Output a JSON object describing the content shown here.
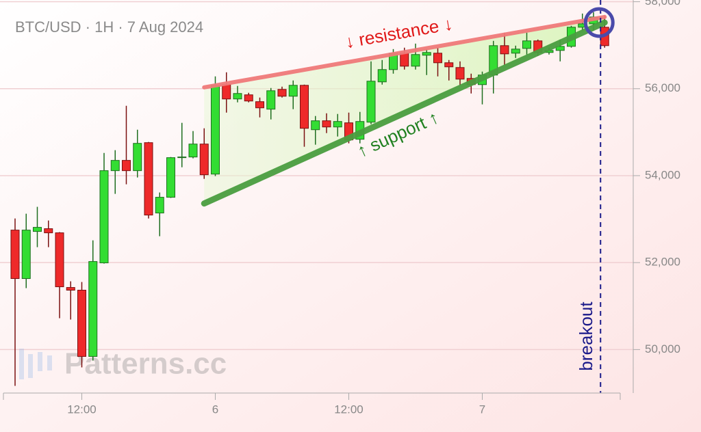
{
  "chart_data": {
    "type": "candlestick",
    "title": "BTC/USD · 1H · 7 Aug 2024",
    "categories": [
      null,
      null,
      null,
      null,
      null,
      null,
      "12:00",
      null,
      null,
      null,
      null,
      null,
      null,
      null,
      null,
      null,
      null,
      null,
      "6",
      null,
      null,
      null,
      null,
      null,
      null,
      null,
      null,
      null,
      null,
      null,
      "12:00",
      null,
      null,
      null,
      null,
      null,
      null,
      null,
      null,
      null,
      null,
      null,
      "7",
      null,
      null,
      null,
      null,
      null,
      null,
      null,
      null,
      null,
      null,
      null
    ],
    "open": [
      52748,
      51633,
      52717,
      52780,
      52685,
      51428,
      51366,
      49842,
      51994,
      54115,
      54351,
      54115,
      54759,
      53141,
      53503,
      54414,
      54429,
      54727,
      54036,
      56094,
      55764,
      55859,
      55702,
      55529,
      55984,
      55827,
      56078,
      55057,
      55262,
      55120,
      55215,
      54837,
      55230,
      56157,
      56440,
      56817,
      56518,
      56770,
      56817,
      56597,
      56487,
      56236,
      56094,
      56314,
      56990,
      56817,
      56927,
      57100,
      56833,
      56880,
      56974,
      57414,
      57492,
      57414
    ],
    "high": [
      53015,
      53125,
      53283,
      52968,
      52701,
      51570,
      51554,
      52512,
      54523,
      54586,
      55607,
      55057,
      54775,
      53613,
      54429,
      55215,
      55026,
      55089,
      56283,
      56377,
      56063,
      55906,
      55796,
      56016,
      56047,
      56189,
      56094,
      55372,
      55434,
      55419,
      55450,
      55466,
      56628,
      56660,
      56911,
      56943,
      57037,
      56911,
      56943,
      56660,
      56628,
      56346,
      56393,
      57100,
      57288,
      56990,
      57288,
      57131,
      56943,
      57131,
      57445,
      57728,
      57759,
      57680
    ],
    "low": [
      49166,
      51413,
      52355,
      52355,
      50721,
      50690,
      49590,
      49747,
      51978,
      53581,
      53801,
      53958,
      53015,
      52607,
      53487,
      54193,
      54398,
      53926,
      53989,
      55450,
      55686,
      55686,
      55340,
      55293,
      55796,
      55529,
      54665,
      54712,
      54979,
      54900,
      54743,
      54743,
      55183,
      56094,
      56346,
      56440,
      56440,
      56314,
      56283,
      56189,
      56078,
      55890,
      55639,
      55890,
      56550,
      56707,
      56786,
      56754,
      56786,
      56628,
      56943,
      57335,
      57335,
      56943
    ],
    "close": [
      51633,
      52748,
      52811,
      52685,
      51444,
      51366,
      49842,
      52025,
      54115,
      54351,
      54115,
      54743,
      53094,
      53503,
      54414,
      54430,
      54727,
      54021,
      56078,
      55764,
      55890,
      55717,
      55560,
      55953,
      55827,
      56078,
      55089,
      55262,
      55120,
      55246,
      54822,
      55246,
      56173,
      56440,
      56817,
      56518,
      56786,
      56833,
      56597,
      56503,
      56220,
      56094,
      56314,
      56990,
      56801,
      56911,
      57100,
      56833,
      56880,
      56974,
      57414,
      57492,
      57649,
      56990
    ],
    "up_color": "#33dd33",
    "down_color": "#ee2a2a",
    "ylim": [
      49000,
      58040
    ],
    "yticks": [
      {
        "value": 50000,
        "label": "50,000"
      },
      {
        "value": 52000,
        "label": "52,000"
      },
      {
        "value": 54000,
        "label": "54,000"
      },
      {
        "value": 56000,
        "label": "56,000"
      },
      {
        "value": 58000,
        "label": "58,000"
      }
    ],
    "grid": true,
    "resistance": {
      "label": "↓ resistance ↓",
      "x": [
        17,
        53
      ],
      "values": [
        56030,
        57650
      ],
      "color": "#f07a7a"
    },
    "support": {
      "label": "↑ support ↑",
      "x": [
        17,
        53
      ],
      "values": [
        53360,
        57520
      ],
      "color": "#4a9e40"
    },
    "breakout": "breakout",
    "watermark": "Patterns.cc"
  }
}
